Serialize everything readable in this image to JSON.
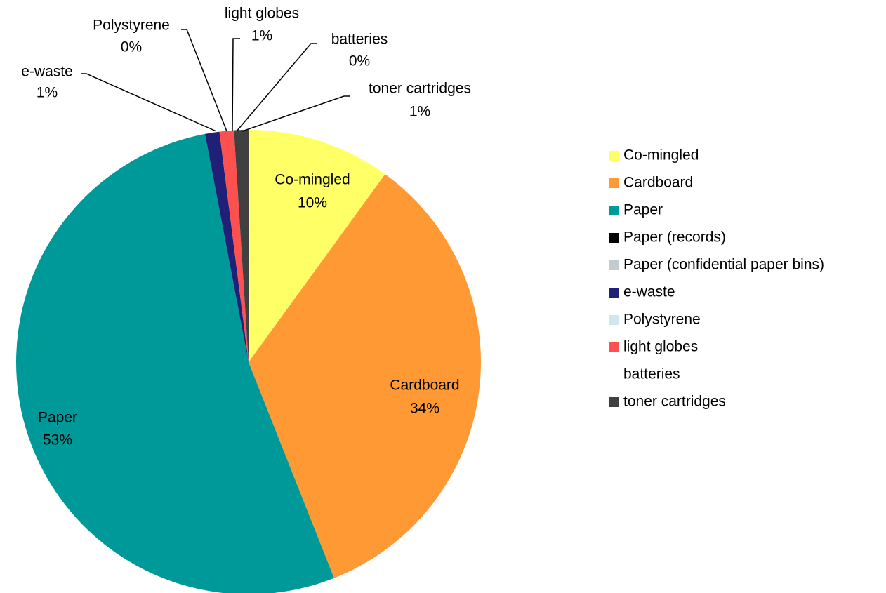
{
  "chart_data": {
    "type": "pie",
    "categories": [
      "Co-mingled",
      "Cardboard",
      "Paper",
      "Paper (records)",
      "Paper (confidential paper bins)",
      "e-waste",
      "Polystyrene",
      "light globes",
      "batteries",
      "toner cartridges"
    ],
    "values": [
      10,
      34,
      53,
      0,
      0,
      1,
      0,
      1,
      0,
      1
    ],
    "value_labels": [
      "10%",
      "34%",
      "53%",
      null,
      null,
      "1%",
      "0%",
      "1%",
      "0%",
      "1%"
    ],
    "colors": [
      "#ffff66",
      "#ff9933",
      "#009999",
      "#000000",
      "#c3cbcf",
      "#202078",
      "#cfe8ee",
      "#ff5050",
      "#ffffff",
      "#404040"
    ],
    "legend": "right"
  }
}
